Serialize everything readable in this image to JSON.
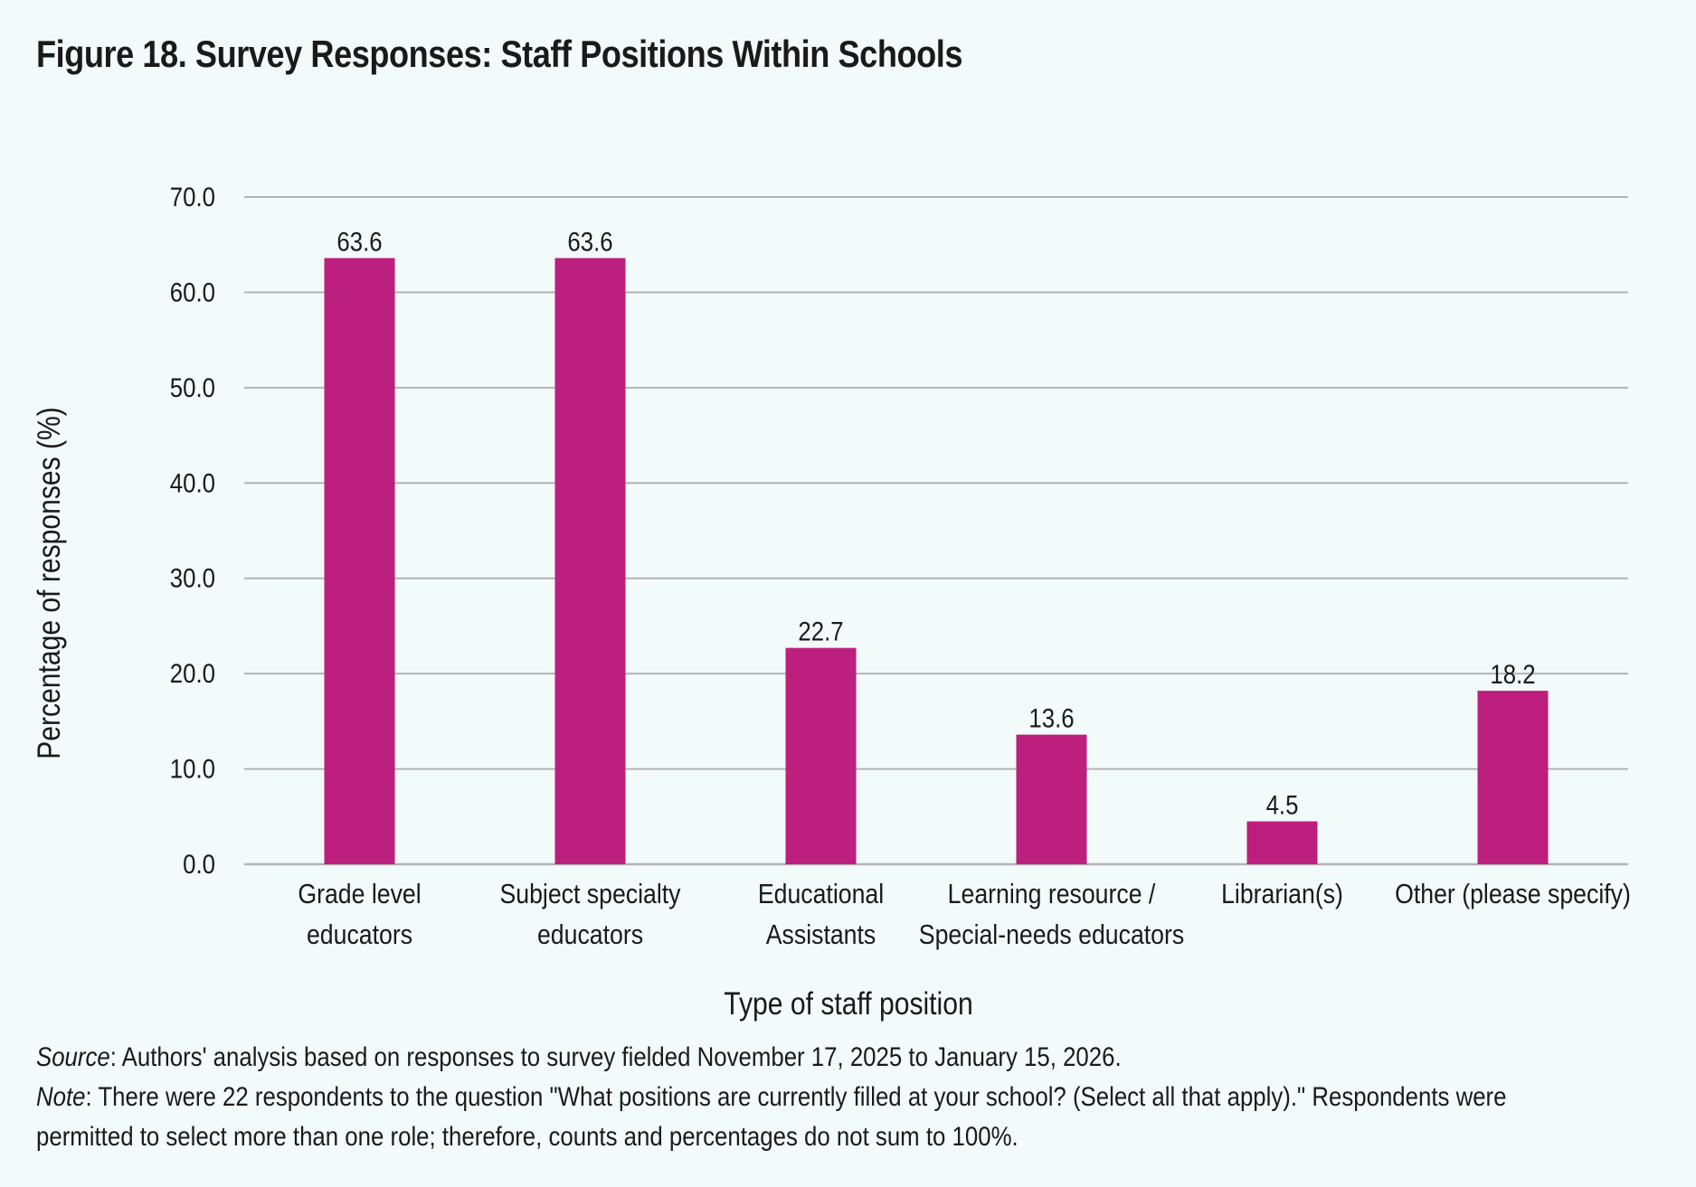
{
  "title": "Figure 18. Survey Responses: Staff Positions Within Schools",
  "chart_data": {
    "type": "bar",
    "categories": [
      [
        "Grade level",
        "educators"
      ],
      [
        "Subject specialty",
        "educators"
      ],
      [
        "Educational",
        "Assistants"
      ],
      [
        "Learning resource /",
        "Special-needs educators"
      ],
      [
        "Librarian(s)"
      ],
      [
        "Other (please specify)"
      ]
    ],
    "values": [
      63.6,
      63.6,
      22.7,
      13.6,
      4.5,
      18.2
    ],
    "value_labels": [
      "63.6",
      "63.6",
      "22.7",
      "13.6",
      "4.5",
      "18.2"
    ],
    "ylim": [
      0,
      70
    ],
    "yticks": [
      "0.0",
      "10.0",
      "20.0",
      "30.0",
      "40.0",
      "50.0",
      "60.0",
      "70.0"
    ],
    "xlabel": "Type of staff position",
    "ylabel": "Percentage of responses (%)",
    "grid": true,
    "bar_color": "#bc1f7e",
    "grid_color": "#b3b3b3"
  },
  "notes": {
    "source_label": "Source",
    "source_text": ": Authors' analysis based on responses to survey fielded November 17, 2025 to January 15, 2026.",
    "note_label": "Note",
    "note_text_1": ": There were 22 respondents to the question \"What positions are currently filled at your school? (Select all that apply).\" Respondents were",
    "note_text_2": "permitted to select more than one role; therefore, counts and percentages do not sum to 100%."
  }
}
